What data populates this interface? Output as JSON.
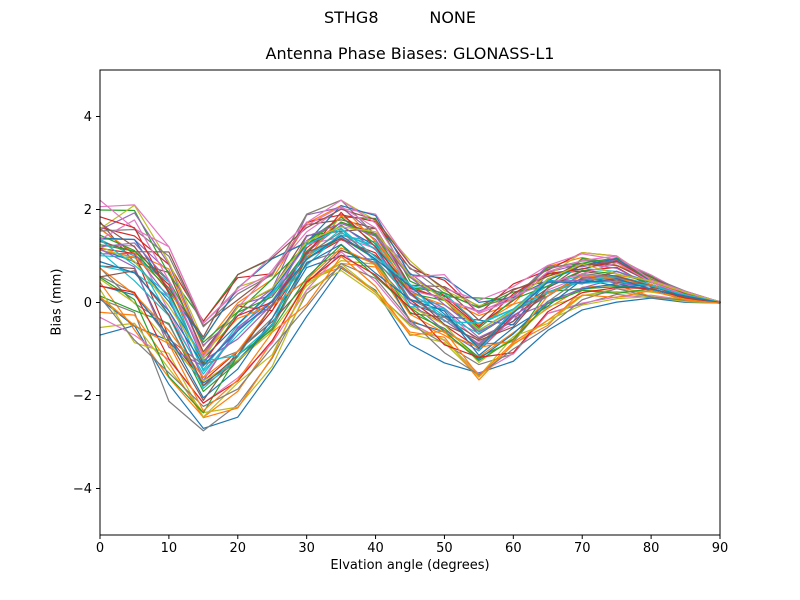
{
  "titles": {
    "suptitle": "STHG8          NONE",
    "axes_title": "Antenna Phase Biases: GLONASS-L1"
  },
  "axis": {
    "xlabel": "Elvation angle (degrees)",
    "ylabel": "Bias (mm)"
  },
  "chart_data": {
    "type": "line",
    "title": "Antenna Phase Biases: GLONASS-L1",
    "suptitle": "STHG8          NONE",
    "xlabel": "Elvation angle (degrees)",
    "ylabel": "Bias (mm)",
    "xlim": [
      0,
      90
    ],
    "ylim": [
      -5,
      5
    ],
    "xticks": [
      0,
      10,
      20,
      30,
      40,
      50,
      60,
      70,
      80,
      90
    ],
    "yticks": [
      -4,
      -2,
      0,
      2,
      4
    ],
    "grid": false,
    "legend": null,
    "x": [
      0,
      5,
      10,
      15,
      20,
      25,
      30,
      35,
      40,
      45,
      50,
      55,
      60,
      65,
      70,
      75,
      80,
      85,
      90
    ],
    "envelope_top": [
      2.2,
      2.1,
      1.2,
      -0.4,
      0.6,
      1.0,
      1.9,
      2.2,
      1.9,
      0.9,
      0.6,
      0.1,
      0.4,
      0.9,
      1.1,
      1.0,
      0.6,
      0.25,
      0.02
    ],
    "envelope_bottom": [
      -0.7,
      -1.2,
      -2.2,
      -2.9,
      -2.6,
      -1.6,
      -0.3,
      0.6,
      0.0,
      -0.9,
      -1.3,
      -1.8,
      -1.4,
      -0.6,
      -0.2,
      0.0,
      0.05,
      0.0,
      -0.02
    ],
    "series_count": 52,
    "jitter": 0.3,
    "spread": 0.88,
    "seed": 7,
    "line_width": 1.2,
    "palette": [
      "#1f77b4",
      "#ff7f0e",
      "#2ca02c",
      "#d62728",
      "#9467bd",
      "#8c564b",
      "#e377c2",
      "#7f7f7f",
      "#bcbd22",
      "#17becf"
    ],
    "axis_color": "#000000",
    "background_color": "#ffffff"
  }
}
